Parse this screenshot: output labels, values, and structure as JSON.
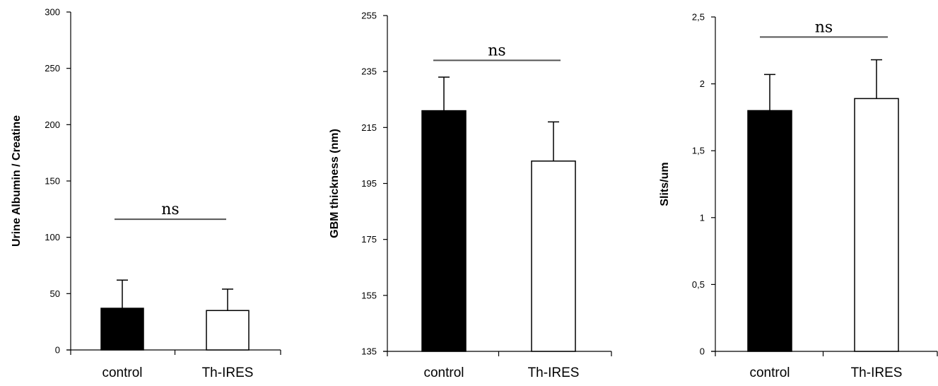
{
  "chart_data": [
    {
      "type": "bar",
      "categories": [
        "control",
        "Th-IRES"
      ],
      "values": [
        37,
        35
      ],
      "errors": [
        25,
        19
      ],
      "ylabel": "Urine Albumin / Creatine",
      "ylim": [
        0,
        300
      ],
      "yticks": [
        0,
        50,
        100,
        150,
        200,
        250,
        300
      ],
      "ytick_labels": [
        "0",
        "50",
        "100",
        "150",
        "200",
        "250",
        "300"
      ],
      "significance": "ns",
      "significance_y": 116,
      "bar_colors": [
        "#000000",
        "#ffffff"
      ],
      "grid": false
    },
    {
      "type": "bar",
      "categories": [
        "control",
        "Th-IRES"
      ],
      "values": [
        221,
        203
      ],
      "errors": [
        12,
        14
      ],
      "ylabel": "GBM thickness (nm)",
      "ylim": [
        135,
        255
      ],
      "yticks": [
        135,
        155,
        175,
        195,
        215,
        235,
        255
      ],
      "ytick_labels": [
        "135",
        "155",
        "175",
        "195",
        "215",
        "235",
        "255"
      ],
      "significance": "ns",
      "significance_y": 239,
      "bar_colors": [
        "#000000",
        "#ffffff"
      ],
      "grid": false
    },
    {
      "type": "bar",
      "categories": [
        "control",
        "Th-IRES"
      ],
      "values": [
        1.8,
        1.89
      ],
      "errors": [
        0.27,
        0.29
      ],
      "ylabel": "Slits/um",
      "ylim": [
        0,
        2.5
      ],
      "yticks": [
        0,
        0.5,
        1,
        1.5,
        2,
        2.5
      ],
      "ytick_labels": [
        "0",
        "0,5",
        "1",
        "1,5",
        "2",
        "2,5"
      ],
      "significance": "ns",
      "significance_y": 2.35,
      "bar_colors": [
        "#000000",
        "#ffffff"
      ],
      "grid": false
    }
  ]
}
